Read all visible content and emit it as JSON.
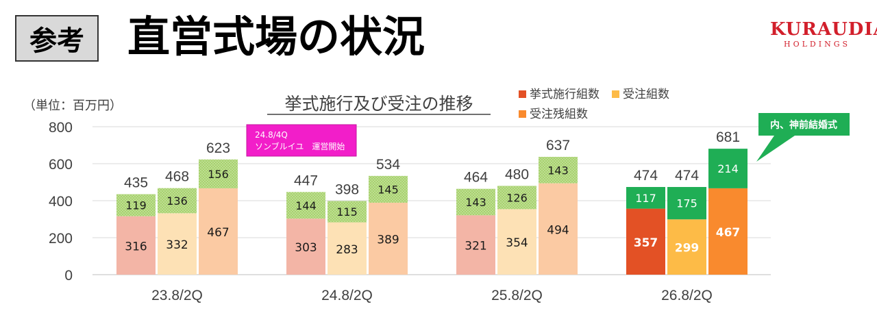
{
  "header": {
    "badge": "参考",
    "title": "直営式場の状況",
    "logo": {
      "brand": "KURAUDIA",
      "sub": "HOLDINGS"
    }
  },
  "chart_data": {
    "type": "bar",
    "title": "挙式施行及び受注の推移",
    "unit_label": "（単位：百万円）",
    "ylim": [
      0,
      800
    ],
    "yticks": [
      0,
      200,
      400,
      600,
      800
    ],
    "grid": true,
    "legend": [
      "挙式施行組数",
      "受注組数",
      "受注残組数"
    ],
    "legend_position": "top-right",
    "colors": {
      "muted": [
        "#f3b5a6",
        "#fde1b5",
        "#fbcaa3"
      ],
      "bright": [
        "#e35125",
        "#fdbb47",
        "#f98a2e"
      ],
      "top_muted": "#a8d26f",
      "top_bright": "#1fae55"
    },
    "groups": [
      {
        "label": "23.8/2Q",
        "highlight": false,
        "bars": [
          {
            "base": 316,
            "top": 119,
            "total": 435
          },
          {
            "base": 332,
            "top": 136,
            "total": 468
          },
          {
            "base": 467,
            "top": 156,
            "total": 623
          }
        ]
      },
      {
        "label": "24.8/2Q",
        "highlight": false,
        "bars": [
          {
            "base": 303,
            "top": 144,
            "total": 447
          },
          {
            "base": 283,
            "top": 115,
            "total": 398
          },
          {
            "base": 389,
            "top": 145,
            "total": 534
          }
        ]
      },
      {
        "label": "25.8/2Q",
        "highlight": false,
        "bars": [
          {
            "base": 321,
            "top": 143,
            "total": 464
          },
          {
            "base": 354,
            "top": 126,
            "total": 480
          },
          {
            "base": 494,
            "top": 143,
            "total": 637
          }
        ]
      },
      {
        "label": "26.8/2Q",
        "highlight": true,
        "bars": [
          {
            "base": 357,
            "top": 117,
            "total": 474
          },
          {
            "base": 299,
            "top": 175,
            "total": 474
          },
          {
            "base": 467,
            "top": 214,
            "total": 681
          }
        ]
      }
    ],
    "annotations": {
      "note_box": [
        "24.8/4Q",
        "ソンブルイユ　運営開始"
      ],
      "callout": "内、神前結婚式"
    }
  }
}
